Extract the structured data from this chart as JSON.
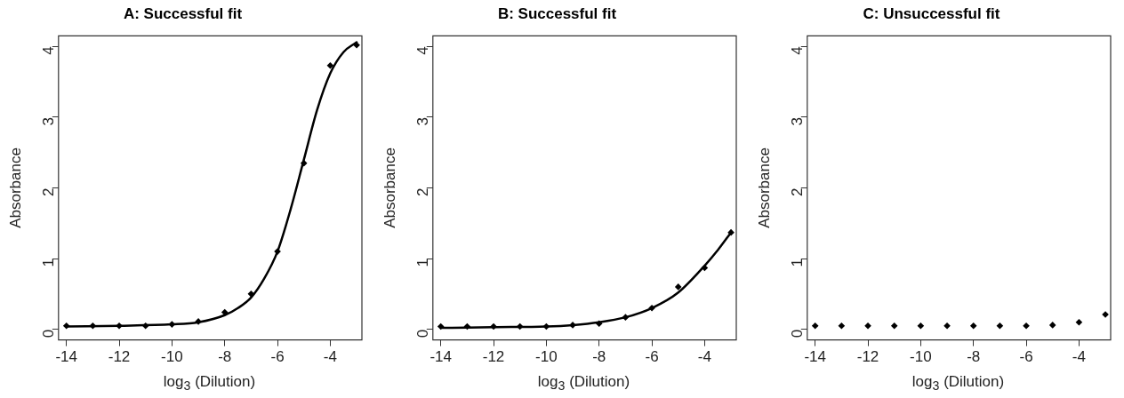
{
  "chart_data": [
    {
      "type": "scatter",
      "title": "A: Successful fit",
      "xlabel": "log$_{3}$ (Dilution)",
      "ylabel": "Absorbance",
      "xlim": [
        -14.3,
        -2.8
      ],
      "ylim": [
        -0.15,
        4.15
      ],
      "xticks": [
        -14,
        -12,
        -10,
        -8,
        -6,
        -4
      ],
      "yticks": [
        0,
        1,
        2,
        3,
        4
      ],
      "series": [
        {
          "marker": "diamond",
          "color": "#000000",
          "x": [
            -14,
            -13,
            -12,
            -11,
            -10,
            -9,
            -8,
            -7,
            -6,
            -5,
            -4,
            -3
          ],
          "values": [
            0.05,
            0.05,
            0.05,
            0.05,
            0.07,
            0.11,
            0.24,
            0.5,
            1.1,
            2.35,
            3.73,
            4.02
          ]
        },
        {
          "type": "line",
          "marker": "none",
          "line_style": "solid",
          "color": "#000000",
          "x": [
            -14,
            -12,
            -10,
            -9,
            -8,
            -7.5,
            -7,
            -6.5,
            -6,
            -5.5,
            -5,
            -4.5,
            -4,
            -3.5,
            -3
          ],
          "values": [
            0.04,
            0.05,
            0.07,
            0.1,
            0.2,
            0.3,
            0.45,
            0.72,
            1.1,
            1.7,
            2.4,
            3.1,
            3.62,
            3.92,
            4.06
          ]
        }
      ]
    },
    {
      "type": "scatter",
      "title": "B: Successful fit",
      "xlabel": "log$_{3}$ (Dilution)",
      "ylabel": "Absorbance",
      "xlim": [
        -14.3,
        -2.8
      ],
      "ylim": [
        -0.15,
        4.15
      ],
      "xticks": [
        -14,
        -12,
        -10,
        -8,
        -6,
        -4
      ],
      "yticks": [
        0,
        1,
        2,
        3,
        4
      ],
      "series": [
        {
          "marker": "diamond",
          "color": "#000000",
          "x": [
            -14,
            -13,
            -12,
            -11,
            -10,
            -9,
            -8,
            -7,
            -6,
            -5,
            -4,
            -3
          ],
          "values": [
            0.04,
            0.04,
            0.04,
            0.04,
            0.04,
            0.06,
            0.08,
            0.17,
            0.3,
            0.6,
            0.87,
            1.37
          ]
        },
        {
          "type": "line",
          "marker": "none",
          "line_style": "solid",
          "color": "#000000",
          "x": [
            -14,
            -12,
            -10,
            -9,
            -8,
            -7,
            -6,
            -5,
            -4,
            -3.5,
            -3
          ],
          "values": [
            0.02,
            0.03,
            0.04,
            0.06,
            0.1,
            0.17,
            0.3,
            0.52,
            0.9,
            1.12,
            1.37
          ]
        }
      ]
    },
    {
      "type": "scatter",
      "title": "C: Unsuccessful fit",
      "xlabel": "log$_{3}$ (Dilution)",
      "ylabel": "Absorbance",
      "xlim": [
        -14.3,
        -2.8
      ],
      "ylim": [
        -0.15,
        4.15
      ],
      "xticks": [
        -14,
        -12,
        -10,
        -8,
        -6,
        -4
      ],
      "yticks": [
        0,
        1,
        2,
        3,
        4
      ],
      "series": [
        {
          "marker": "diamond",
          "color": "#000000",
          "x": [
            -14,
            -13,
            -12,
            -11,
            -10,
            -9,
            -8,
            -7,
            -6,
            -5,
            -4,
            -3
          ],
          "values": [
            0.05,
            0.05,
            0.05,
            0.05,
            0.05,
            0.05,
            0.05,
            0.05,
            0.05,
            0.06,
            0.1,
            0.21
          ]
        }
      ]
    }
  ]
}
